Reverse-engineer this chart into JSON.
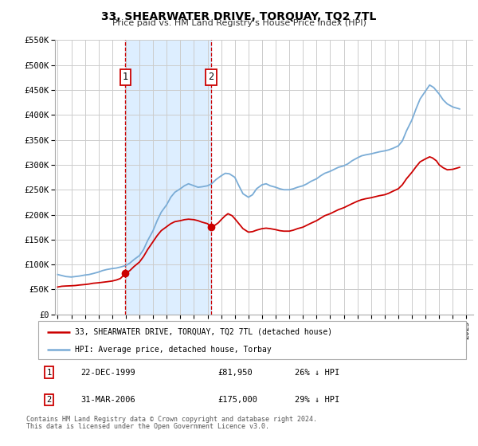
{
  "title": "33, SHEARWATER DRIVE, TORQUAY, TQ2 7TL",
  "subtitle": "Price paid vs. HM Land Registry's House Price Index (HPI)",
  "legend_line1": "33, SHEARWATER DRIVE, TORQUAY, TQ2 7TL (detached house)",
  "legend_line2": "HPI: Average price, detached house, Torbay",
  "transaction1_date": "22-DEC-1999",
  "transaction1_price": "£81,950",
  "transaction1_hpi": "26% ↓ HPI",
  "transaction2_date": "31-MAR-2006",
  "transaction2_price": "£175,000",
  "transaction2_hpi": "29% ↓ HPI",
  "footnote1": "Contains HM Land Registry data © Crown copyright and database right 2024.",
  "footnote2": "This data is licensed under the Open Government Licence v3.0.",
  "hpi_color": "#7aacd6",
  "price_color": "#cc0000",
  "shading_color": "#ddeeff",
  "marker_color": "#cc0000",
  "grid_color": "#cccccc",
  "ylim": [
    0,
    550000
  ],
  "yticks": [
    0,
    50000,
    100000,
    150000,
    200000,
    250000,
    300000,
    350000,
    400000,
    450000,
    500000,
    550000
  ],
  "ytick_labels": [
    "£0",
    "£50K",
    "£100K",
    "£150K",
    "£200K",
    "£250K",
    "£300K",
    "£350K",
    "£400K",
    "£450K",
    "£500K",
    "£550K"
  ],
  "xlim_start": 1994.8,
  "xlim_end": 2025.5,
  "transaction1_x": 1999.97,
  "transaction1_y": 81950,
  "transaction2_x": 2006.25,
  "transaction2_y": 175000,
  "hpi_data": [
    [
      1995.0,
      80000
    ],
    [
      1995.3,
      78000
    ],
    [
      1995.6,
      76000
    ],
    [
      1996.0,
      75000
    ],
    [
      1996.3,
      76000
    ],
    [
      1996.6,
      77000
    ],
    [
      1997.0,
      79000
    ],
    [
      1997.3,
      80000
    ],
    [
      1997.6,
      82000
    ],
    [
      1998.0,
      85000
    ],
    [
      1998.3,
      88000
    ],
    [
      1998.6,
      90000
    ],
    [
      1999.0,
      92000
    ],
    [
      1999.3,
      93000
    ],
    [
      1999.6,
      95000
    ],
    [
      2000.0,
      98000
    ],
    [
      2000.3,
      103000
    ],
    [
      2000.6,
      110000
    ],
    [
      2001.0,
      118000
    ],
    [
      2001.3,
      130000
    ],
    [
      2001.6,
      148000
    ],
    [
      2002.0,
      168000
    ],
    [
      2002.3,
      188000
    ],
    [
      2002.6,
      205000
    ],
    [
      2003.0,
      220000
    ],
    [
      2003.3,
      235000
    ],
    [
      2003.6,
      245000
    ],
    [
      2004.0,
      252000
    ],
    [
      2004.3,
      258000
    ],
    [
      2004.6,
      262000
    ],
    [
      2005.0,
      258000
    ],
    [
      2005.3,
      255000
    ],
    [
      2005.6,
      256000
    ],
    [
      2006.0,
      258000
    ],
    [
      2006.3,
      262000
    ],
    [
      2006.6,
      270000
    ],
    [
      2007.0,
      278000
    ],
    [
      2007.3,
      283000
    ],
    [
      2007.6,
      282000
    ],
    [
      2008.0,
      275000
    ],
    [
      2008.3,
      258000
    ],
    [
      2008.6,
      242000
    ],
    [
      2009.0,
      235000
    ],
    [
      2009.3,
      240000
    ],
    [
      2009.6,
      252000
    ],
    [
      2010.0,
      260000
    ],
    [
      2010.3,
      262000
    ],
    [
      2010.6,
      258000
    ],
    [
      2011.0,
      255000
    ],
    [
      2011.3,
      252000
    ],
    [
      2011.6,
      250000
    ],
    [
      2012.0,
      250000
    ],
    [
      2012.3,
      252000
    ],
    [
      2012.6,
      255000
    ],
    [
      2013.0,
      258000
    ],
    [
      2013.3,
      262000
    ],
    [
      2013.6,
      267000
    ],
    [
      2014.0,
      272000
    ],
    [
      2014.3,
      278000
    ],
    [
      2014.6,
      283000
    ],
    [
      2015.0,
      287000
    ],
    [
      2015.3,
      291000
    ],
    [
      2015.6,
      295000
    ],
    [
      2016.0,
      298000
    ],
    [
      2016.3,
      302000
    ],
    [
      2016.6,
      308000
    ],
    [
      2017.0,
      314000
    ],
    [
      2017.3,
      318000
    ],
    [
      2017.6,
      320000
    ],
    [
      2018.0,
      322000
    ],
    [
      2018.3,
      324000
    ],
    [
      2018.6,
      326000
    ],
    [
      2019.0,
      328000
    ],
    [
      2019.3,
      330000
    ],
    [
      2019.6,
      333000
    ],
    [
      2020.0,
      338000
    ],
    [
      2020.3,
      348000
    ],
    [
      2020.6,
      368000
    ],
    [
      2021.0,
      390000
    ],
    [
      2021.3,
      412000
    ],
    [
      2021.6,
      432000
    ],
    [
      2022.0,
      448000
    ],
    [
      2022.3,
      460000
    ],
    [
      2022.6,
      455000
    ],
    [
      2023.0,
      442000
    ],
    [
      2023.3,
      430000
    ],
    [
      2023.6,
      422000
    ],
    [
      2024.0,
      416000
    ],
    [
      2024.5,
      412000
    ]
  ],
  "price_data": [
    [
      1995.0,
      55000
    ],
    [
      1995.3,
      56500
    ],
    [
      1995.6,
      57000
    ],
    [
      1996.0,
      57500
    ],
    [
      1996.3,
      58000
    ],
    [
      1996.6,
      59000
    ],
    [
      1997.0,
      60000
    ],
    [
      1997.3,
      61000
    ],
    [
      1997.6,
      62500
    ],
    [
      1998.0,
      63500
    ],
    [
      1998.3,
      64500
    ],
    [
      1998.6,
      65500
    ],
    [
      1999.0,
      67000
    ],
    [
      1999.3,
      69000
    ],
    [
      1999.6,
      72000
    ],
    [
      1999.97,
      81950
    ],
    [
      2000.0,
      82500
    ],
    [
      2000.3,
      88000
    ],
    [
      2000.6,
      96000
    ],
    [
      2001.0,
      105000
    ],
    [
      2001.3,
      116000
    ],
    [
      2001.6,
      130000
    ],
    [
      2002.0,
      146000
    ],
    [
      2002.3,
      158000
    ],
    [
      2002.6,
      168000
    ],
    [
      2003.0,
      176000
    ],
    [
      2003.3,
      182000
    ],
    [
      2003.6,
      186000
    ],
    [
      2004.0,
      188000
    ],
    [
      2004.3,
      190000
    ],
    [
      2004.6,
      191000
    ],
    [
      2005.0,
      190000
    ],
    [
      2005.3,
      188000
    ],
    [
      2005.6,
      185000
    ],
    [
      2006.0,
      182000
    ],
    [
      2006.25,
      175000
    ],
    [
      2006.5,
      178000
    ],
    [
      2006.8,
      184000
    ],
    [
      2007.0,
      190000
    ],
    [
      2007.3,
      198000
    ],
    [
      2007.5,
      202000
    ],
    [
      2007.8,
      198000
    ],
    [
      2008.0,
      192000
    ],
    [
      2008.3,
      182000
    ],
    [
      2008.6,
      172000
    ],
    [
      2009.0,
      165000
    ],
    [
      2009.3,
      166000
    ],
    [
      2009.6,
      169000
    ],
    [
      2010.0,
      172000
    ],
    [
      2010.3,
      173000
    ],
    [
      2010.6,
      172000
    ],
    [
      2011.0,
      170000
    ],
    [
      2011.3,
      168000
    ],
    [
      2011.6,
      167000
    ],
    [
      2012.0,
      167000
    ],
    [
      2012.3,
      169000
    ],
    [
      2012.6,
      172000
    ],
    [
      2013.0,
      175000
    ],
    [
      2013.3,
      179000
    ],
    [
      2013.6,
      183000
    ],
    [
      2014.0,
      188000
    ],
    [
      2014.3,
      193000
    ],
    [
      2014.6,
      198000
    ],
    [
      2015.0,
      202000
    ],
    [
      2015.3,
      206000
    ],
    [
      2015.6,
      210000
    ],
    [
      2016.0,
      214000
    ],
    [
      2016.3,
      218000
    ],
    [
      2016.6,
      222000
    ],
    [
      2017.0,
      227000
    ],
    [
      2017.3,
      230000
    ],
    [
      2017.6,
      232000
    ],
    [
      2018.0,
      234000
    ],
    [
      2018.3,
      236000
    ],
    [
      2018.6,
      238000
    ],
    [
      2019.0,
      240000
    ],
    [
      2019.3,
      243000
    ],
    [
      2019.6,
      247000
    ],
    [
      2020.0,
      252000
    ],
    [
      2020.3,
      260000
    ],
    [
      2020.6,
      272000
    ],
    [
      2021.0,
      285000
    ],
    [
      2021.3,
      296000
    ],
    [
      2021.6,
      306000
    ],
    [
      2022.0,
      312000
    ],
    [
      2022.3,
      316000
    ],
    [
      2022.5,
      314000
    ],
    [
      2022.8,
      308000
    ],
    [
      2023.0,
      300000
    ],
    [
      2023.3,
      294000
    ],
    [
      2023.6,
      290000
    ],
    [
      2024.0,
      291000
    ],
    [
      2024.5,
      295000
    ]
  ]
}
